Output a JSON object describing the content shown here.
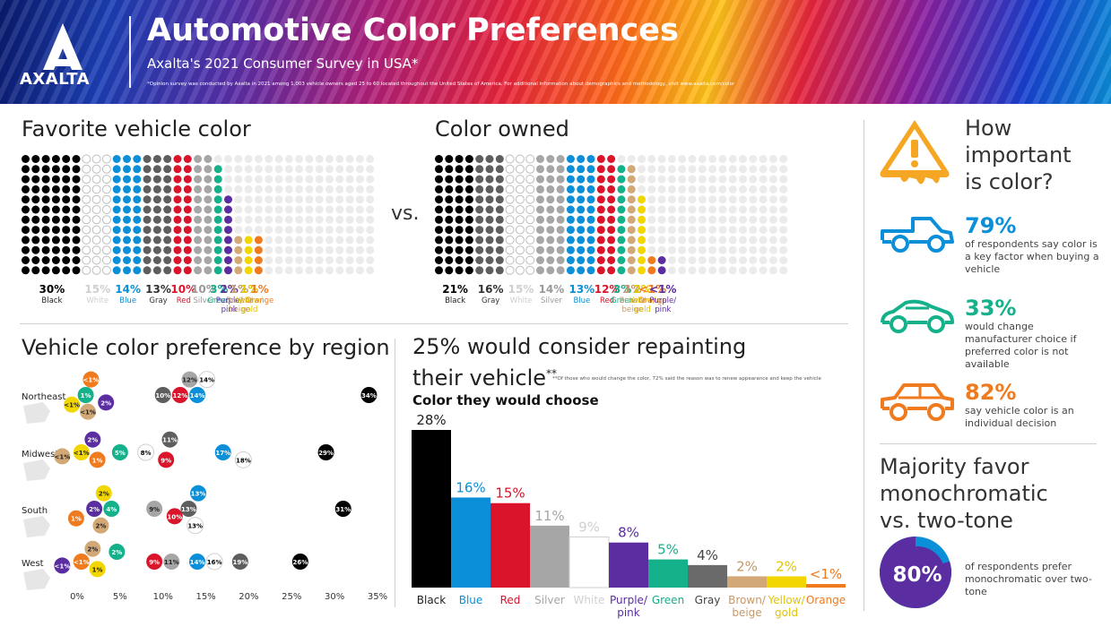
{
  "header": {
    "logo_text": "AXALTA",
    "title": "Automotive Color Preferences",
    "subtitle": "Axalta's 2021 Consumer Survey in USA*",
    "footnote": "*Opinion survey was conducted by Axalta in 2021 among 1,003 vehicle owners aged 25 to 60 located throughout the United States of America. For additional information about demographics and methodology, visit www.axalta.com/color"
  },
  "favorite": {
    "title": "Favorite vehicle color",
    "colors": [
      {
        "pct": "30%",
        "value": 30,
        "name": "Black",
        "color": "#000000",
        "label_color": "#000000"
      },
      {
        "pct": "15%",
        "value": 15,
        "name": "White",
        "color": "#ffffff",
        "label_color": "#cfcfcf"
      },
      {
        "pct": "14%",
        "value": 14,
        "name": "Blue",
        "color": "#0a8fd8",
        "label_color": "#0a8fd8"
      },
      {
        "pct": "13%",
        "value": 13,
        "name": "Gray",
        "color": "#5e5e5e",
        "label_color": "#333333"
      },
      {
        "pct": "10%",
        "value": 10,
        "name": "Red",
        "color": "#d9142b",
        "label_color": "#d9142b"
      },
      {
        "pct": "10%",
        "value": 10,
        "name": "Silver",
        "color": "#a6a6a6",
        "label_color": "#9a9a9a"
      },
      {
        "pct": "3%",
        "value": 3,
        "name": "Green",
        "color": "#14b18a",
        "label_color": "#14b18a"
      },
      {
        "pct": "2%",
        "value": 2,
        "name": "Purple/ pink",
        "color": "#5a2da0",
        "label_color": "#5a2da0"
      },
      {
        "pct": "1%",
        "value": 1,
        "name": "Brown/ beige",
        "color": "#d2a877",
        "label_color": "#c4986a"
      },
      {
        "pct": "1%",
        "value": 1,
        "name": "Yellow/ gold",
        "color": "#f2d600",
        "label_color": "#e0c400"
      },
      {
        "pct": "1%",
        "value": 1,
        "name": "Orange",
        "color": "#f07a1e",
        "label_color": "#f07a1e"
      }
    ]
  },
  "vs_label": "vs.",
  "owned": {
    "title": "Color owned",
    "colors": [
      {
        "pct": "21%",
        "value": 21,
        "name": "Black",
        "color": "#000000",
        "label_color": "#000000"
      },
      {
        "pct": "16%",
        "value": 16,
        "name": "Gray",
        "color": "#5e5e5e",
        "label_color": "#333333"
      },
      {
        "pct": "15%",
        "value": 15,
        "name": "White",
        "color": "#ffffff",
        "label_color": "#cfcfcf"
      },
      {
        "pct": "14%",
        "value": 14,
        "name": "Silver",
        "color": "#a6a6a6",
        "label_color": "#9a9a9a"
      },
      {
        "pct": "13%",
        "value": 13,
        "name": "Blue",
        "color": "#0a8fd8",
        "label_color": "#0a8fd8"
      },
      {
        "pct": "12%",
        "value": 12,
        "name": "Red",
        "color": "#d9142b",
        "label_color": "#d9142b"
      },
      {
        "pct": "3%",
        "value": 3,
        "name": "Green",
        "color": "#14b18a",
        "label_color": "#14b18a"
      },
      {
        "pct": "3%",
        "value": 3,
        "name": "Brown/ beige",
        "color": "#d2a877",
        "label_color": "#c4986a"
      },
      {
        "pct": "2%",
        "value": 2,
        "name": "Yellow/ gold",
        "color": "#f2d600",
        "label_color": "#e0c400"
      },
      {
        "pct": "<1%",
        "value": 0.5,
        "name": "Orange",
        "color": "#f07a1e",
        "label_color": "#f07a1e"
      },
      {
        "pct": "<1%",
        "value": 0.5,
        "name": "Purple/ pink",
        "color": "#5a2da0",
        "label_color": "#5a2da0"
      }
    ]
  },
  "region": {
    "title": "Vehicle color preference by region",
    "axis_ticks": [
      "0%",
      "5%",
      "10%",
      "15%",
      "20%",
      "25%",
      "30%",
      "35%"
    ],
    "regions": [
      {
        "name": "Northeast",
        "markers": [
          {
            "label": "1%",
            "value": 1,
            "color": "#14b18a"
          },
          {
            "label": "<1%",
            "value": 0.5,
            "color": "#f2d600"
          },
          {
            "label": "2%",
            "value": 2,
            "color": "#5a2da0"
          },
          {
            "label": "<1%",
            "value": 0.5,
            "color": "#f07a1e"
          },
          {
            "label": "<1%",
            "value": 0.5,
            "color": "#d2a877"
          },
          {
            "label": "10%",
            "value": 10,
            "color": "#5e5e5e"
          },
          {
            "label": "12%",
            "value": 12,
            "color": "#d9142b"
          },
          {
            "label": "14%",
            "value": 14,
            "color": "#0a8fd8"
          },
          {
            "label": "12%",
            "value": 12,
            "color": "#a6a6a6"
          },
          {
            "label": "14%",
            "value": 14,
            "color": "#ffffff"
          },
          {
            "label": "34%",
            "value": 34,
            "color": "#000000"
          }
        ]
      },
      {
        "name": "Midwest",
        "markers": [
          {
            "label": "<1%",
            "value": 0.5,
            "color": "#f2d600"
          },
          {
            "label": "2%",
            "value": 2,
            "color": "#5a2da0"
          },
          {
            "label": "1%",
            "value": 1,
            "color": "#f07a1e"
          },
          {
            "label": "<1%",
            "value": 0.5,
            "color": "#d2a877"
          },
          {
            "label": "5%",
            "value": 5,
            "color": "#14b18a"
          },
          {
            "label": "8%",
            "value": 8,
            "color": "#ffffff"
          },
          {
            "label": "9%",
            "value": 9,
            "color": "#d9142b"
          },
          {
            "label": "11%",
            "value": 11,
            "color": "#5e5e5e"
          },
          {
            "label": "17%",
            "value": 17,
            "color": "#0a8fd8"
          },
          {
            "label": "18%",
            "value": 18,
            "color": "#ffffff"
          },
          {
            "label": "29%",
            "value": 29,
            "color": "#000000"
          }
        ]
      },
      {
        "name": "South",
        "markers": [
          {
            "label": "2%",
            "value": 2,
            "color": "#5a2da0"
          },
          {
            "label": "1%",
            "value": 1,
            "color": "#f07a1e"
          },
          {
            "label": "2%",
            "value": 2,
            "color": "#f2d600"
          },
          {
            "label": "4%",
            "value": 4,
            "color": "#14b18a"
          },
          {
            "label": "2%",
            "value": 2,
            "color": "#d2a877"
          },
          {
            "label": "9%",
            "value": 9,
            "color": "#a6a6a6"
          },
          {
            "label": "10%",
            "value": 10,
            "color": "#d9142b"
          },
          {
            "label": "13%",
            "value": 13,
            "color": "#5e5e5e"
          },
          {
            "label": "13%",
            "value": 13,
            "color": "#0a8fd8"
          },
          {
            "label": "13%",
            "value": 13,
            "color": "#ffffff"
          },
          {
            "label": "31%",
            "value": 31,
            "color": "#000000"
          }
        ]
      },
      {
        "name": "West",
        "markers": [
          {
            "label": "<1%",
            "value": 0.5,
            "color": "#f07a1e"
          },
          {
            "label": "2%",
            "value": 2,
            "color": "#d2a877"
          },
          {
            "label": "1%",
            "value": 1,
            "color": "#f2d600"
          },
          {
            "label": "<1%",
            "value": 0.5,
            "color": "#5a2da0"
          },
          {
            "label": "2%",
            "value": 2,
            "color": "#14b18a"
          },
          {
            "label": "9%",
            "value": 9,
            "color": "#d9142b"
          },
          {
            "label": "11%",
            "value": 11,
            "color": "#a6a6a6"
          },
          {
            "label": "14%",
            "value": 14,
            "color": "#0a8fd8"
          },
          {
            "label": "16%",
            "value": 16,
            "color": "#ffffff"
          },
          {
            "label": "19%",
            "value": 19,
            "color": "#5e5e5e"
          },
          {
            "label": "26%",
            "value": 26,
            "color": "#000000"
          }
        ]
      }
    ]
  },
  "repaint": {
    "title_line1": "25% would consider repainting",
    "title_line2": "their vehicle",
    "title_mark": "**",
    "footnote": "**Of those who would change the color, 72% said the reason was to renew appearance and keep the vehicle",
    "subtitle": "Color they would choose"
  },
  "chart_data": {
    "type": "bar",
    "title": "Color they would choose",
    "categories": [
      "Black",
      "Blue",
      "Red",
      "Silver",
      "White",
      "Purple/ pink",
      "Green",
      "Gray",
      "Brown/ beige",
      "Yellow/ gold",
      "Orange"
    ],
    "values": [
      28,
      16,
      15,
      11,
      9,
      8,
      5,
      4,
      2,
      2,
      0.5
    ],
    "value_labels": [
      "28%",
      "16%",
      "15%",
      "11%",
      "9%",
      "8%",
      "5%",
      "4%",
      "2%",
      "2%",
      "<1%"
    ],
    "colors": [
      "#000000",
      "#0a8fd8",
      "#d9142b",
      "#a6a6a6",
      "#ffffff",
      "#5a2da0",
      "#14b18a",
      "#6a6a6a",
      "#d2a877",
      "#f2d600",
      "#f07a1e"
    ],
    "label_colors": [
      "#222222",
      "#0a8fd8",
      "#d9142b",
      "#a6a6a6",
      "#d0d0d0",
      "#5a2da0",
      "#14b18a",
      "#444444",
      "#c4986a",
      "#e0c400",
      "#f07a1e"
    ],
    "ylim": [
      0,
      28
    ],
    "grid": false
  },
  "importance": {
    "title_lines": [
      "How",
      "important",
      "is color?"
    ],
    "stats": [
      {
        "value": "79%",
        "color": "#0a8fd8",
        "desc": "of respondents say color is a key factor when buying a vehicle",
        "icon": "pickup-truck-icon"
      },
      {
        "value": "33%",
        "color": "#14b18a",
        "desc": "would change manufacturer choice if preferred color is not available",
        "icon": "sports-car-icon"
      },
      {
        "value": "82%",
        "color": "#f07a1e",
        "desc": "say vehicle color is an individual decision",
        "icon": "suv-icon"
      }
    ]
  },
  "monochrome": {
    "title_lines": [
      "Majority favor",
      "monochromatic",
      "vs. two-tone"
    ],
    "value": 80,
    "value_label": "80%",
    "desc": "of respondents prefer monochromatic over two-tone",
    "colors": {
      "main": "#5a2da0",
      "rest": "#0a8fd8"
    }
  }
}
